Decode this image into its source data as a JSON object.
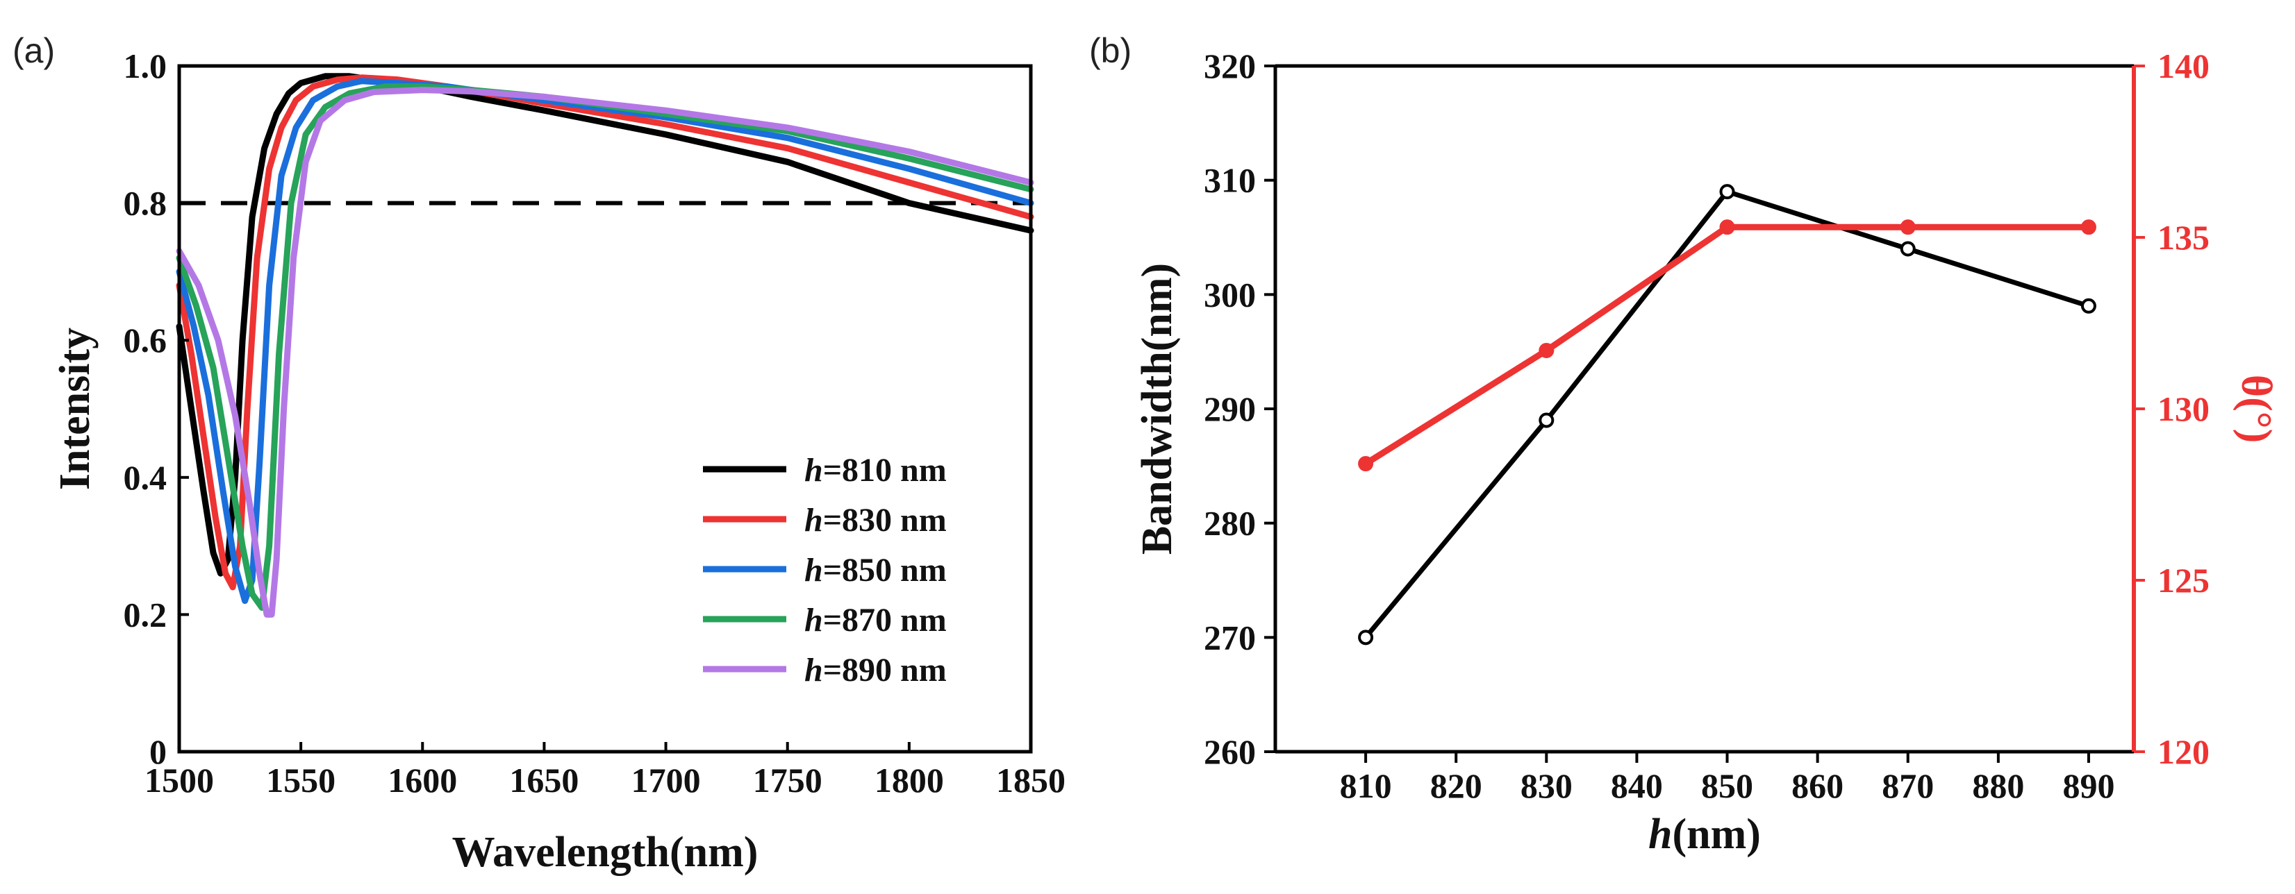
{
  "chart_data": [
    {
      "type": "line",
      "panel_label": "(a)",
      "xlabel": "Wavelength(nm)",
      "ylabel": "Intensity",
      "xlim": [
        1500,
        1850
      ],
      "ylim": [
        0,
        1.0
      ],
      "xticks": [
        1500,
        1550,
        1600,
        1650,
        1700,
        1750,
        1800,
        1850
      ],
      "xtick_labels": [
        "1500",
        "1550",
        "1600",
        "1650",
        "1700",
        "1750",
        "1800",
        "1850"
      ],
      "yticks": [
        0,
        0.2,
        0.4,
        0.6,
        0.8,
        1.0
      ],
      "ytick_labels": [
        "0",
        "0.2",
        "0.4",
        "0.6",
        "0.8",
        "1.0"
      ],
      "reference_line": {
        "y": 0.8,
        "style": "dashed"
      },
      "legend_position": "bottom-right",
      "series": [
        {
          "name_italic": "h",
          "name_rest": "=810 nm",
          "color": "#000000",
          "x": [
            1500,
            1505,
            1510,
            1514,
            1517,
            1520,
            1523,
            1526,
            1530,
            1535,
            1540,
            1545,
            1550,
            1560,
            1570,
            1580,
            1600,
            1620,
            1650,
            1700,
            1750,
            1800,
            1850
          ],
          "y": [
            0.62,
            0.5,
            0.38,
            0.29,
            0.26,
            0.28,
            0.4,
            0.6,
            0.78,
            0.88,
            0.93,
            0.96,
            0.975,
            0.985,
            0.985,
            0.98,
            0.97,
            0.955,
            0.935,
            0.9,
            0.86,
            0.8,
            0.76
          ]
        },
        {
          "name_italic": "h",
          "name_rest": "=830 nm",
          "color": "#ee3333",
          "x": [
            1500,
            1505,
            1510,
            1515,
            1519,
            1522,
            1525,
            1528,
            1532,
            1537,
            1542,
            1548,
            1555,
            1565,
            1575,
            1590,
            1610,
            1650,
            1700,
            1750,
            1800,
            1850
          ],
          "y": [
            0.68,
            0.58,
            0.46,
            0.34,
            0.26,
            0.24,
            0.3,
            0.5,
            0.72,
            0.85,
            0.91,
            0.95,
            0.97,
            0.98,
            0.983,
            0.98,
            0.97,
            0.945,
            0.915,
            0.88,
            0.83,
            0.78
          ]
        },
        {
          "name_italic": "h",
          "name_rest": "=850 nm",
          "color": "#1a6fdc",
          "x": [
            1500,
            1506,
            1512,
            1518,
            1523,
            1527,
            1530,
            1533,
            1537,
            1542,
            1548,
            1555,
            1565,
            1575,
            1590,
            1610,
            1650,
            1700,
            1750,
            1800,
            1850
          ],
          "y": [
            0.7,
            0.62,
            0.52,
            0.38,
            0.27,
            0.22,
            0.25,
            0.42,
            0.68,
            0.84,
            0.91,
            0.95,
            0.97,
            0.978,
            0.975,
            0.97,
            0.95,
            0.925,
            0.895,
            0.85,
            0.8
          ]
        },
        {
          "name_italic": "h",
          "name_rest": "=870 nm",
          "color": "#27a35a",
          "x": [
            1500,
            1507,
            1514,
            1520,
            1526,
            1530,
            1534,
            1537,
            1541,
            1546,
            1552,
            1560,
            1570,
            1585,
            1600,
            1620,
            1650,
            1700,
            1750,
            1800,
            1850
          ],
          "y": [
            0.72,
            0.65,
            0.56,
            0.43,
            0.3,
            0.23,
            0.21,
            0.3,
            0.58,
            0.8,
            0.9,
            0.94,
            0.96,
            0.97,
            0.97,
            0.965,
            0.955,
            0.93,
            0.905,
            0.865,
            0.82
          ]
        },
        {
          "name_italic": "h",
          "name_rest": "=890 nm",
          "color": "#b478e6",
          "x": [
            1500,
            1508,
            1516,
            1523,
            1529,
            1533,
            1536,
            1538,
            1540,
            1543,
            1547,
            1552,
            1558,
            1568,
            1580,
            1600,
            1620,
            1650,
            1700,
            1750,
            1800,
            1850
          ],
          "y": [
            0.73,
            0.68,
            0.6,
            0.49,
            0.36,
            0.26,
            0.2,
            0.2,
            0.28,
            0.5,
            0.72,
            0.86,
            0.92,
            0.95,
            0.962,
            0.965,
            0.963,
            0.955,
            0.935,
            0.91,
            0.875,
            0.83
          ]
        }
      ]
    },
    {
      "type": "line",
      "panel_label": "(b)",
      "xlabel_italic": "h",
      "xlabel_rest": "(nm)",
      "ylabel": "Bandwidth(nm)",
      "ylabel_right": "θ(°)",
      "xlim": [
        800,
        895
      ],
      "ylim": [
        260,
        320
      ],
      "ylim_right": [
        120,
        140
      ],
      "xticks": [
        810,
        820,
        830,
        840,
        850,
        860,
        870,
        880,
        890
      ],
      "xtick_labels": [
        "810",
        "820",
        "830",
        "840",
        "850",
        "860",
        "870",
        "880",
        "890"
      ],
      "yticks": [
        260,
        270,
        280,
        290,
        300,
        310,
        320
      ],
      "ytick_labels": [
        "260",
        "270",
        "280",
        "290",
        "300",
        "310",
        "320"
      ],
      "yticks_right": [
        120,
        125,
        130,
        135,
        140
      ],
      "ytick_labels_right": [
        "120",
        "125",
        "130",
        "135",
        "140"
      ],
      "series": [
        {
          "name": "Bandwidth",
          "axis": "left",
          "color": "#000000",
          "marker": "open-circle",
          "x": [
            810,
            830,
            850,
            870,
            890
          ],
          "y": [
            270,
            289,
            309,
            304,
            299
          ]
        },
        {
          "name": "θ",
          "axis": "right",
          "color": "#ee3333",
          "marker": "filled-circle",
          "x": [
            810,
            830,
            850,
            870,
            890
          ],
          "y": [
            128.4,
            131.7,
            135.3,
            135.3,
            135.3
          ]
        }
      ]
    }
  ]
}
